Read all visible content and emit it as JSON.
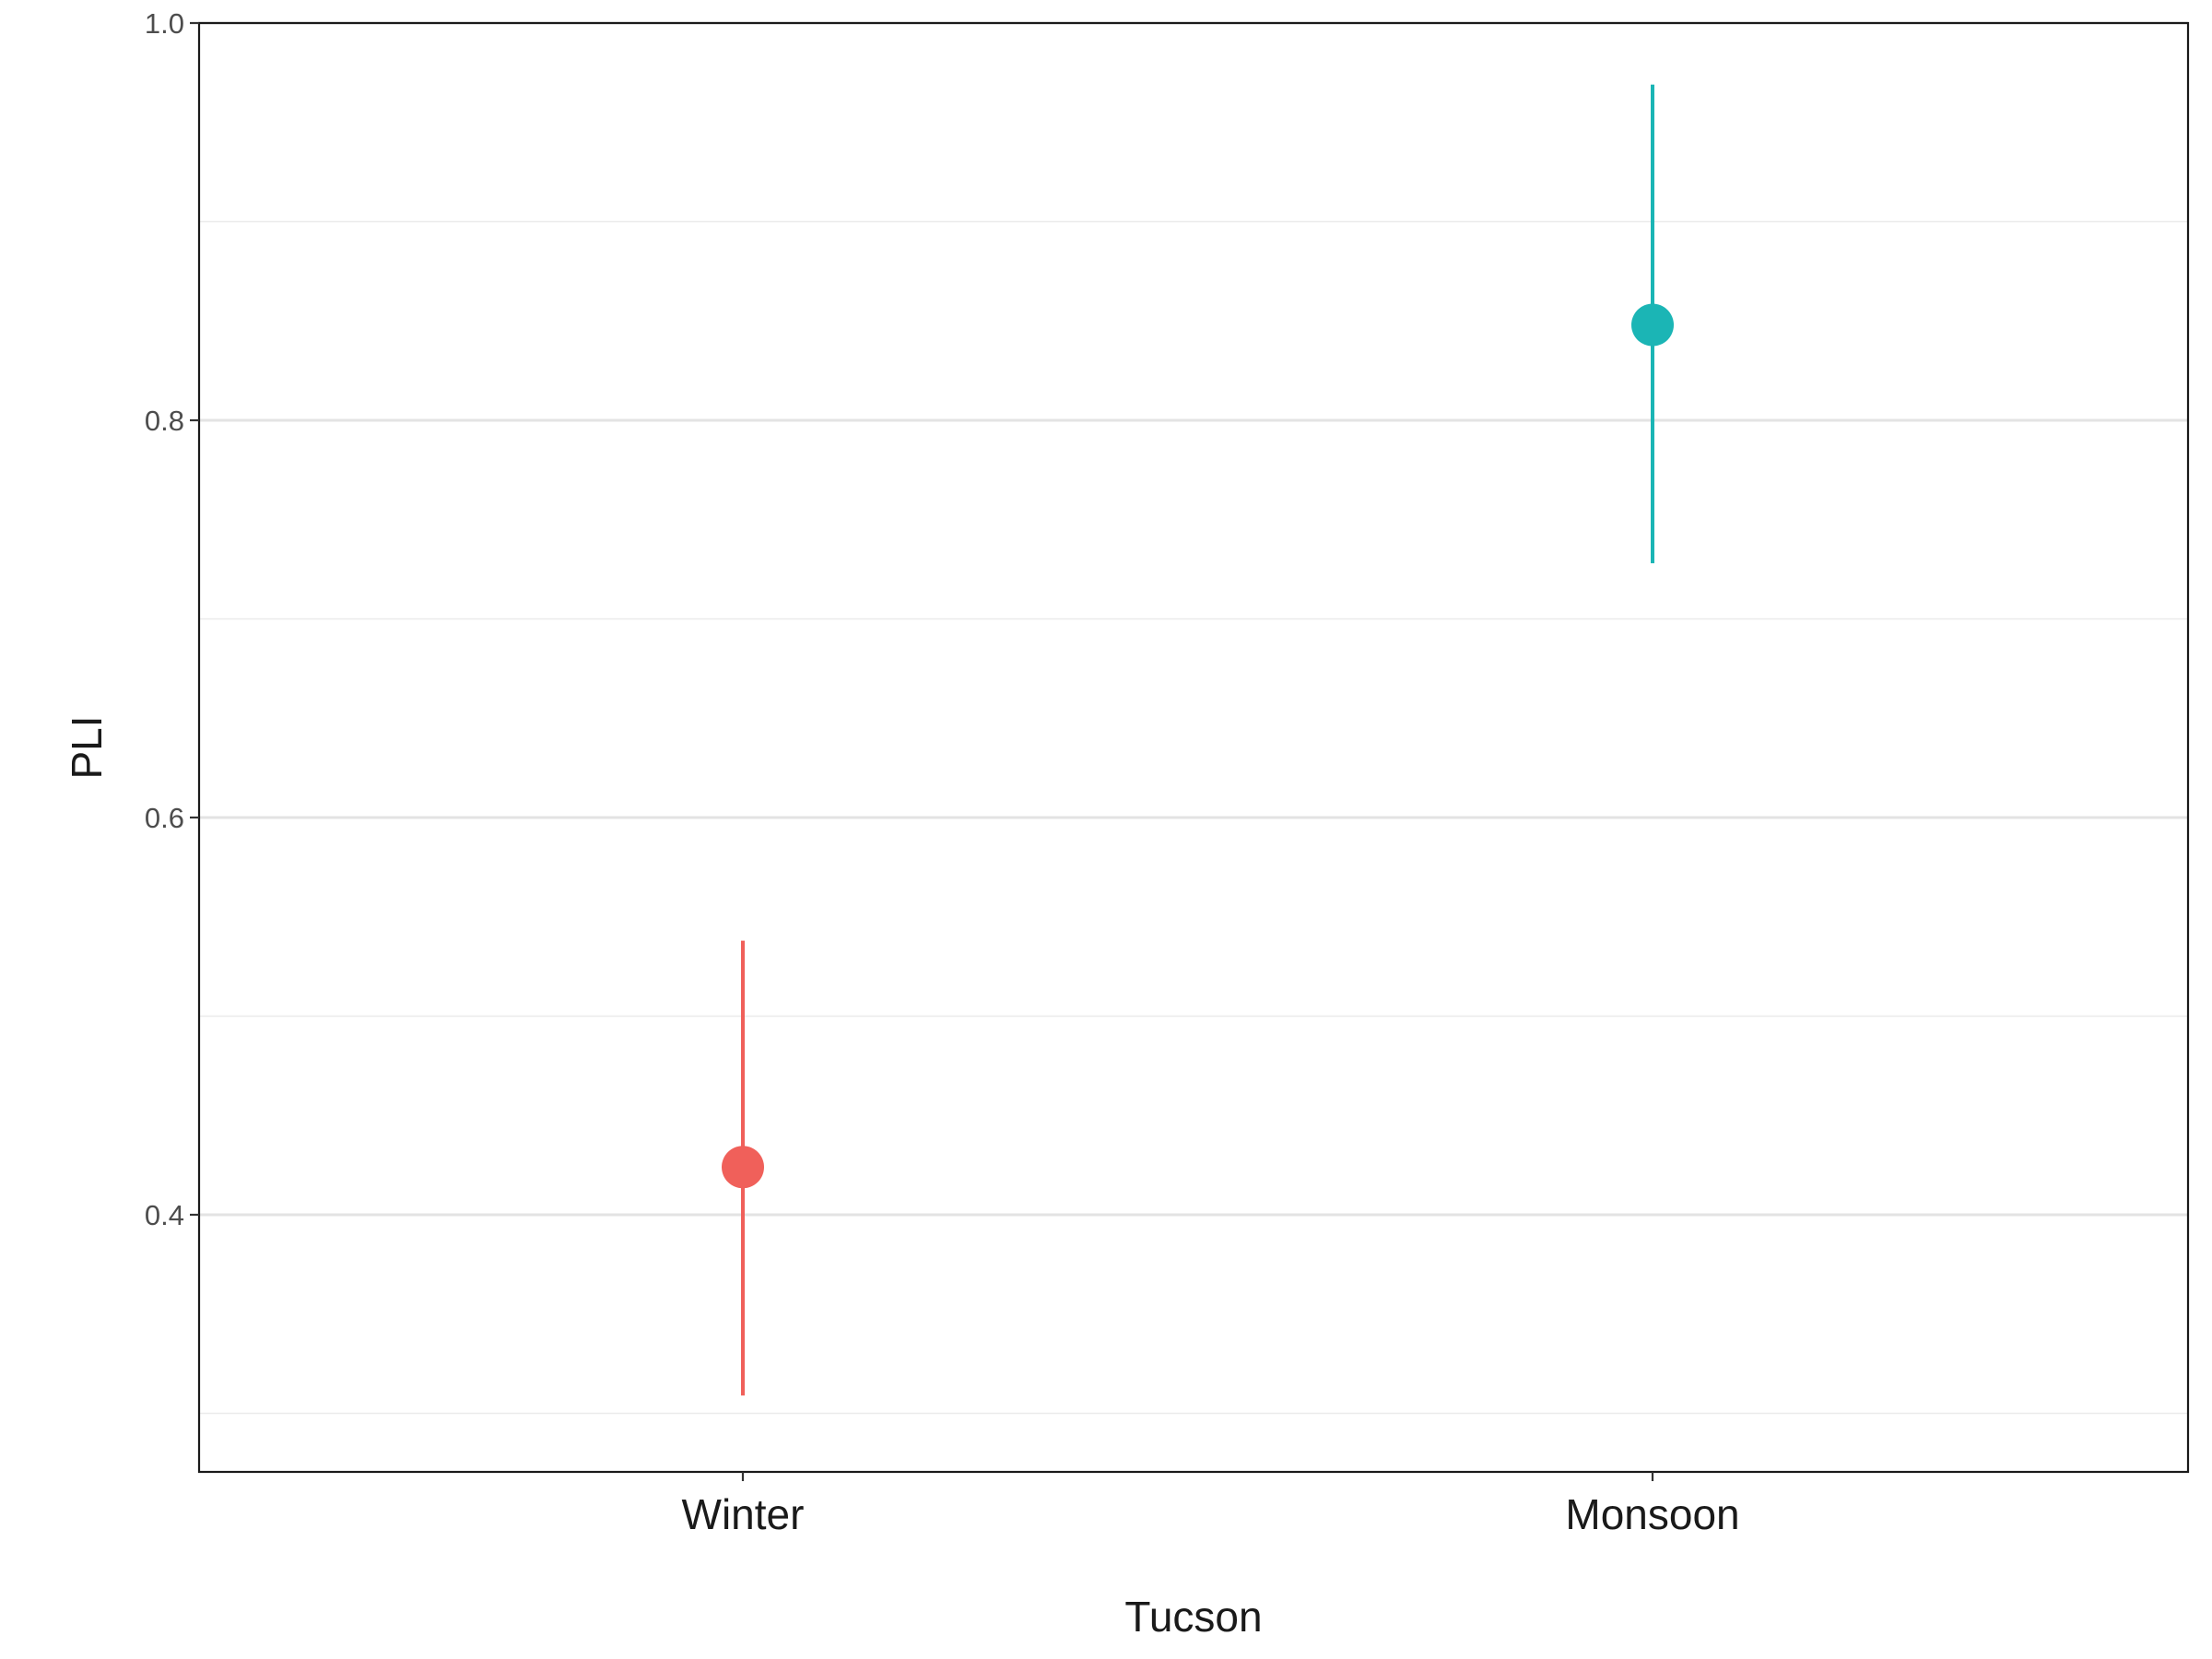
{
  "chart_data": {
    "type": "scatter",
    "xlabel": "Tucson",
    "ylabel": "PLI",
    "categories": [
      "Winter",
      "Monsoon"
    ],
    "points": [
      {
        "category": "Winter",
        "y": 0.424,
        "ymin": 0.309,
        "ymax": 0.538,
        "color": "#f0605a"
      },
      {
        "category": "Monsoon",
        "y": 0.848,
        "ymin": 0.728,
        "ymax": 0.969,
        "color": "#1bb5b5"
      }
    ],
    "ylim": [
      0.3,
      1.0
    ],
    "yticks": [
      0.4,
      0.6,
      0.8,
      1.0
    ],
    "ytick_labels": [
      "0.4",
      "0.6",
      "0.8",
      "1.0"
    ],
    "ygrid_minor": [
      0.3,
      0.5,
      0.7,
      0.9
    ],
    "grid": true,
    "legend": "none"
  }
}
